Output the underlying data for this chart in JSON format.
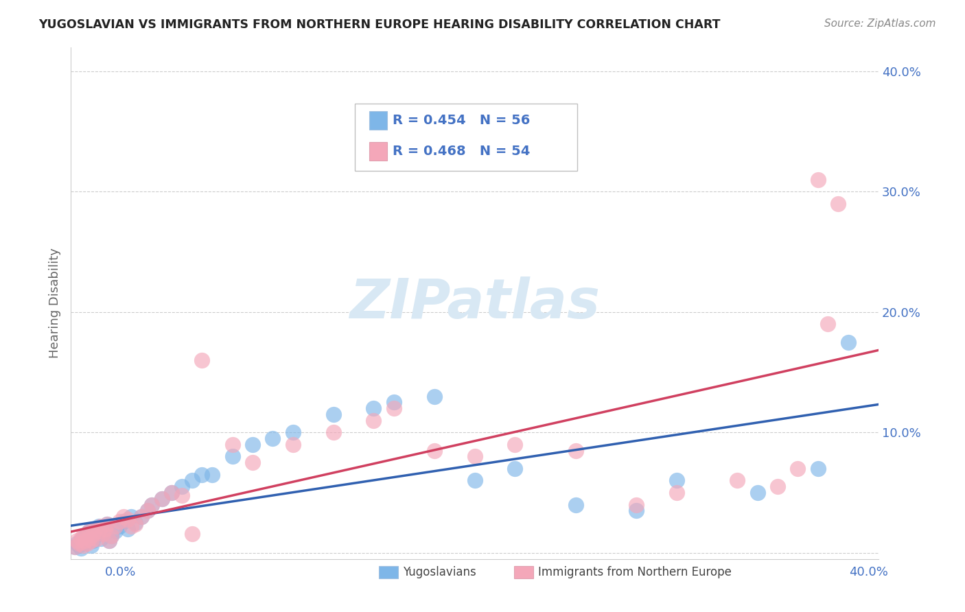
{
  "title": "YUGOSLAVIAN VS IMMIGRANTS FROM NORTHERN EUROPE HEARING DISABILITY CORRELATION CHART",
  "source": "Source: ZipAtlas.com",
  "ylabel": "Hearing Disability",
  "xlim": [
    0.0,
    0.4
  ],
  "ylim": [
    -0.005,
    0.42
  ],
  "yticks": [
    0.0,
    0.1,
    0.2,
    0.3,
    0.4
  ],
  "grid_color": "#cccccc",
  "background_color": "#ffffff",
  "blue_color": "#7eb6e8",
  "blue_line_color": "#3060b0",
  "pink_color": "#f4a7b9",
  "pink_line_color": "#d04060",
  "axis_label_color": "#4472c4",
  "title_color": "#222222",
  "watermark": "ZIPatlas",
  "watermark_color": "#d8e8f4",
  "blue_R": 0.454,
  "blue_N": 56,
  "pink_R": 0.468,
  "pink_N": 54,
  "blue_x": [
    0.002,
    0.003,
    0.004,
    0.005,
    0.005,
    0.006,
    0.007,
    0.007,
    0.008,
    0.008,
    0.009,
    0.009,
    0.01,
    0.01,
    0.011,
    0.011,
    0.012,
    0.013,
    0.014,
    0.015,
    0.016,
    0.017,
    0.018,
    0.019,
    0.02,
    0.022,
    0.024,
    0.026,
    0.028,
    0.03,
    0.032,
    0.035,
    0.038,
    0.04,
    0.045,
    0.05,
    0.055,
    0.06,
    0.065,
    0.07,
    0.08,
    0.09,
    0.1,
    0.11,
    0.13,
    0.15,
    0.16,
    0.18,
    0.2,
    0.22,
    0.25,
    0.28,
    0.3,
    0.34,
    0.37,
    0.385
  ],
  "blue_y": [
    0.005,
    0.008,
    0.006,
    0.01,
    0.004,
    0.012,
    0.008,
    0.014,
    0.01,
    0.016,
    0.012,
    0.018,
    0.006,
    0.015,
    0.01,
    0.02,
    0.014,
    0.018,
    0.022,
    0.012,
    0.016,
    0.02,
    0.024,
    0.01,
    0.014,
    0.018,
    0.022,
    0.026,
    0.02,
    0.03,
    0.025,
    0.03,
    0.035,
    0.04,
    0.045,
    0.05,
    0.055,
    0.06,
    0.065,
    0.065,
    0.08,
    0.09,
    0.095,
    0.1,
    0.115,
    0.12,
    0.125,
    0.13,
    0.06,
    0.07,
    0.04,
    0.035,
    0.06,
    0.05,
    0.07,
    0.175
  ],
  "pink_x": [
    0.002,
    0.003,
    0.004,
    0.005,
    0.006,
    0.006,
    0.007,
    0.008,
    0.008,
    0.009,
    0.009,
    0.01,
    0.011,
    0.012,
    0.013,
    0.014,
    0.015,
    0.016,
    0.017,
    0.018,
    0.019,
    0.02,
    0.022,
    0.024,
    0.026,
    0.028,
    0.03,
    0.032,
    0.035,
    0.038,
    0.04,
    0.045,
    0.05,
    0.055,
    0.06,
    0.065,
    0.08,
    0.09,
    0.11,
    0.13,
    0.15,
    0.16,
    0.18,
    0.2,
    0.22,
    0.25,
    0.28,
    0.3,
    0.33,
    0.35,
    0.36,
    0.37,
    0.375,
    0.38
  ],
  "pink_y": [
    0.005,
    0.01,
    0.008,
    0.012,
    0.006,
    0.014,
    0.01,
    0.008,
    0.016,
    0.012,
    0.018,
    0.01,
    0.015,
    0.02,
    0.012,
    0.018,
    0.022,
    0.016,
    0.02,
    0.024,
    0.01,
    0.014,
    0.022,
    0.026,
    0.03,
    0.028,
    0.022,
    0.024,
    0.03,
    0.035,
    0.04,
    0.045,
    0.05,
    0.048,
    0.016,
    0.16,
    0.09,
    0.075,
    0.09,
    0.1,
    0.11,
    0.12,
    0.085,
    0.08,
    0.09,
    0.085,
    0.04,
    0.05,
    0.06,
    0.055,
    0.07,
    0.31,
    0.19,
    0.29
  ]
}
